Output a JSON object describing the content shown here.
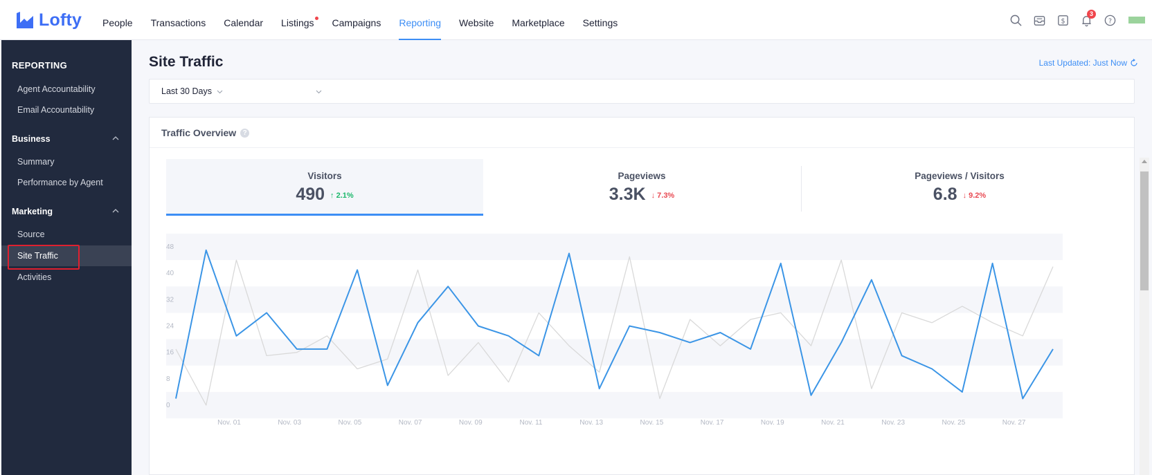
{
  "app": {
    "name": "Lofty"
  },
  "nav": {
    "items": [
      {
        "label": "People",
        "active": false,
        "dot": false
      },
      {
        "label": "Transactions",
        "active": false,
        "dot": false
      },
      {
        "label": "Calendar",
        "active": false,
        "dot": false
      },
      {
        "label": "Listings",
        "active": false,
        "dot": true
      },
      {
        "label": "Campaigns",
        "active": false,
        "dot": false
      },
      {
        "label": "Reporting",
        "active": true,
        "dot": false
      },
      {
        "label": "Website",
        "active": false,
        "dot": false
      },
      {
        "label": "Marketplace",
        "active": false,
        "dot": false
      },
      {
        "label": "Settings",
        "active": false,
        "dot": false
      }
    ],
    "notification_count": "3",
    "icons": [
      "search-icon",
      "inbox-icon",
      "dollar-icon",
      "bell-icon",
      "help-icon"
    ]
  },
  "sidebar": {
    "title": "REPORTING",
    "links_top": [
      "Agent Accountability",
      "Email Accountability"
    ],
    "groups": [
      {
        "label": "Business",
        "items": [
          "Summary",
          "Performance by Agent"
        ]
      },
      {
        "label": "Marketing",
        "items": [
          "Source",
          "Site Traffic",
          "Activities"
        ]
      }
    ],
    "active_item": "Site Traffic"
  },
  "page": {
    "title": "Site Traffic",
    "last_updated": "Last Updated: Just Now",
    "filter": {
      "date_range": "Last 30 Days",
      "second_select": ""
    }
  },
  "card": {
    "title": "Traffic Overview",
    "kpis": [
      {
        "label": "Visitors",
        "value": "490",
        "change": "2.1%",
        "direction": "up",
        "active": true
      },
      {
        "label": "Pageviews",
        "value": "3.3K",
        "change": "7.3%",
        "direction": "down",
        "active": false
      },
      {
        "label": "Pageviews / Visitors",
        "value": "6.8",
        "change": "9.2%",
        "direction": "down",
        "active": false
      }
    ]
  },
  "colors": {
    "accent": "#3d8ef5",
    "sidebar_bg": "#212a3e",
    "up": "#1bb86b",
    "down": "#e84952",
    "series_current": "#3b95e6",
    "series_previous": "#d9d9d9"
  },
  "chart_data": {
    "type": "line",
    "y_ticks": [
      0,
      8,
      16,
      24,
      32,
      40,
      48
    ],
    "ylim": [
      0,
      48
    ],
    "x_ticks": [
      "Nov. 01",
      "Nov. 03",
      "Nov. 05",
      "Nov. 07",
      "Nov. 09",
      "Nov. 11",
      "Nov. 13",
      "Nov. 15",
      "Nov. 17",
      "Nov. 19",
      "Nov. 21",
      "Nov. 23",
      "Nov. 25",
      "Nov. 27"
    ],
    "grid": "horizontal bands",
    "series": [
      {
        "color": "#3b95e6",
        "values": [
          2,
          47,
          21,
          28,
          17,
          17,
          41,
          6,
          25,
          36,
          24,
          21,
          15,
          46,
          5,
          24,
          22,
          19,
          22,
          17,
          43,
          3,
          19,
          38,
          15,
          11,
          4,
          43,
          2,
          17
        ]
      },
      {
        "color": "#d9d9d9",
        "values": [
          17,
          0,
          44,
          15,
          16,
          21,
          11,
          14,
          41,
          9,
          19,
          7,
          28,
          18,
          10,
          45,
          2,
          26,
          18,
          26,
          28,
          18,
          44,
          5,
          28,
          25,
          30,
          25,
          21,
          42
        ]
      }
    ]
  }
}
